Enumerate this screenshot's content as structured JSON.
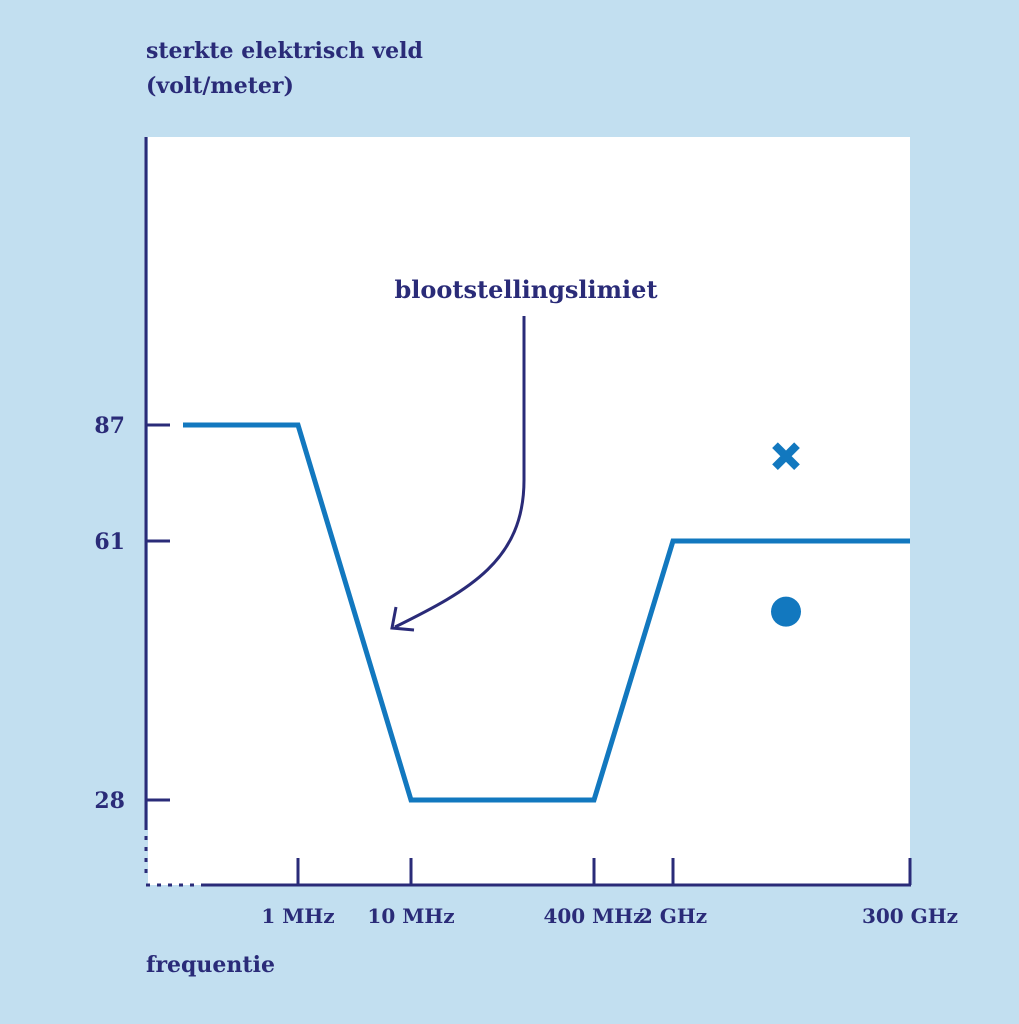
{
  "chart_data": {
    "type": "line",
    "ylabel_line1": "sterkte elektrisch veld",
    "ylabel_line2": "(volt/meter)",
    "xlabel": "frequentie",
    "annotation": "blootstellingslimiet",
    "categories": [
      "1 MHz",
      "10 MHz",
      "400 MHz",
      "2 GHz",
      "300 GHz"
    ],
    "y_ticks": [
      87,
      61,
      28
    ],
    "series": [
      {
        "name": "blootstellingslimiet",
        "points": [
          {
            "x": "start",
            "y": 87
          },
          {
            "x": "1 MHz",
            "y": 87
          },
          {
            "x": "10 MHz",
            "y": 28
          },
          {
            "x": "400 MHz",
            "y": 28
          },
          {
            "x": "2 GHz",
            "y": 61
          },
          {
            "x": "300 GHz",
            "y": 61
          }
        ]
      }
    ],
    "markers": [
      {
        "name": "cross-marker",
        "shape": "cross",
        "y": 80
      },
      {
        "name": "dot-marker",
        "shape": "circle",
        "y": 52
      }
    ],
    "colors": {
      "line": "#1278bf",
      "axis": "#2a2b78",
      "plot_bg": "#ffffff",
      "page_bg": "#c2dff0"
    }
  }
}
